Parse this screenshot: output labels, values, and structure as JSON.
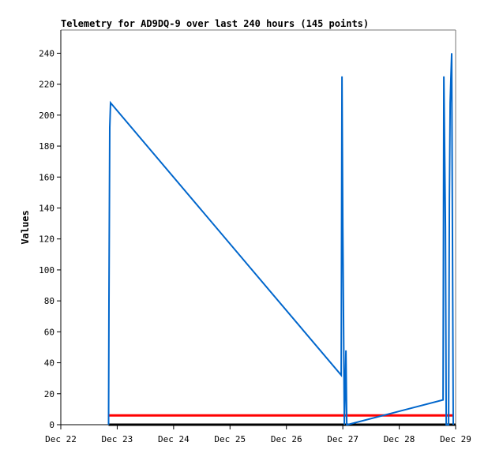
{
  "chart_data": {
    "type": "line",
    "title": "Telemetry for AD9DQ-9 over last 240 hours (145 points)",
    "xlabel": "",
    "ylabel": "Values",
    "xlim": [
      "12-22 00:00",
      "12-29 00:00"
    ],
    "ylim": [
      0,
      255
    ],
    "x_ticks": [
      {
        "x": "12-22 00:00",
        "label": "Dec 22"
      },
      {
        "x": "12-23 00:00",
        "label": "Dec 23"
      },
      {
        "x": "12-24 00:00",
        "label": "Dec 24"
      },
      {
        "x": "12-25 00:00",
        "label": "Dec 25"
      },
      {
        "x": "12-26 00:00",
        "label": "Dec 26"
      },
      {
        "x": "12-27 00:00",
        "label": "Dec 27"
      },
      {
        "x": "12-28 00:00",
        "label": "Dec 28"
      },
      {
        "x": "12-29 00:00",
        "label": "Dec 29"
      }
    ],
    "y_ticks": [
      0,
      20,
      40,
      60,
      80,
      100,
      120,
      140,
      160,
      180,
      200,
      220,
      240
    ],
    "grid": false,
    "series": [
      {
        "color": "#000000",
        "points": [
          [
            "12-22 20:20",
            0
          ],
          [
            "12-29 00:00",
            0
          ]
        ]
      },
      {
        "color": "#ff0000",
        "points": [
          [
            "12-22 20:20",
            6
          ],
          [
            "12-28 22:40",
            6
          ]
        ]
      },
      {
        "color": "#0066cc",
        "points": [
          [
            "12-22 20:20",
            0
          ],
          [
            "12-22 20:30",
            80
          ],
          [
            "12-22 20:50",
            192
          ],
          [
            "12-22 21:10",
            208
          ],
          [
            "12-26 23:18",
            32
          ],
          [
            "12-26 23:38",
            225
          ],
          [
            "12-27 00:00",
            128
          ],
          [
            "12-27 00:40",
            0
          ],
          [
            "12-27 01:20",
            48
          ],
          [
            "12-27 01:40",
            0
          ],
          [
            "12-27 02:00",
            0
          ],
          [
            "12-28 18:40",
            16
          ],
          [
            "12-28 19:00",
            225
          ],
          [
            "12-28 19:40",
            128
          ],
          [
            "12-28 20:00",
            0
          ],
          [
            "12-28 21:00",
            0
          ],
          [
            "12-28 21:20",
            145
          ],
          [
            "12-28 21:40",
            208
          ],
          [
            "12-28 22:20",
            240
          ],
          [
            "12-28 22:40",
            121
          ],
          [
            "12-28 23:00",
            0
          ]
        ]
      }
    ]
  }
}
